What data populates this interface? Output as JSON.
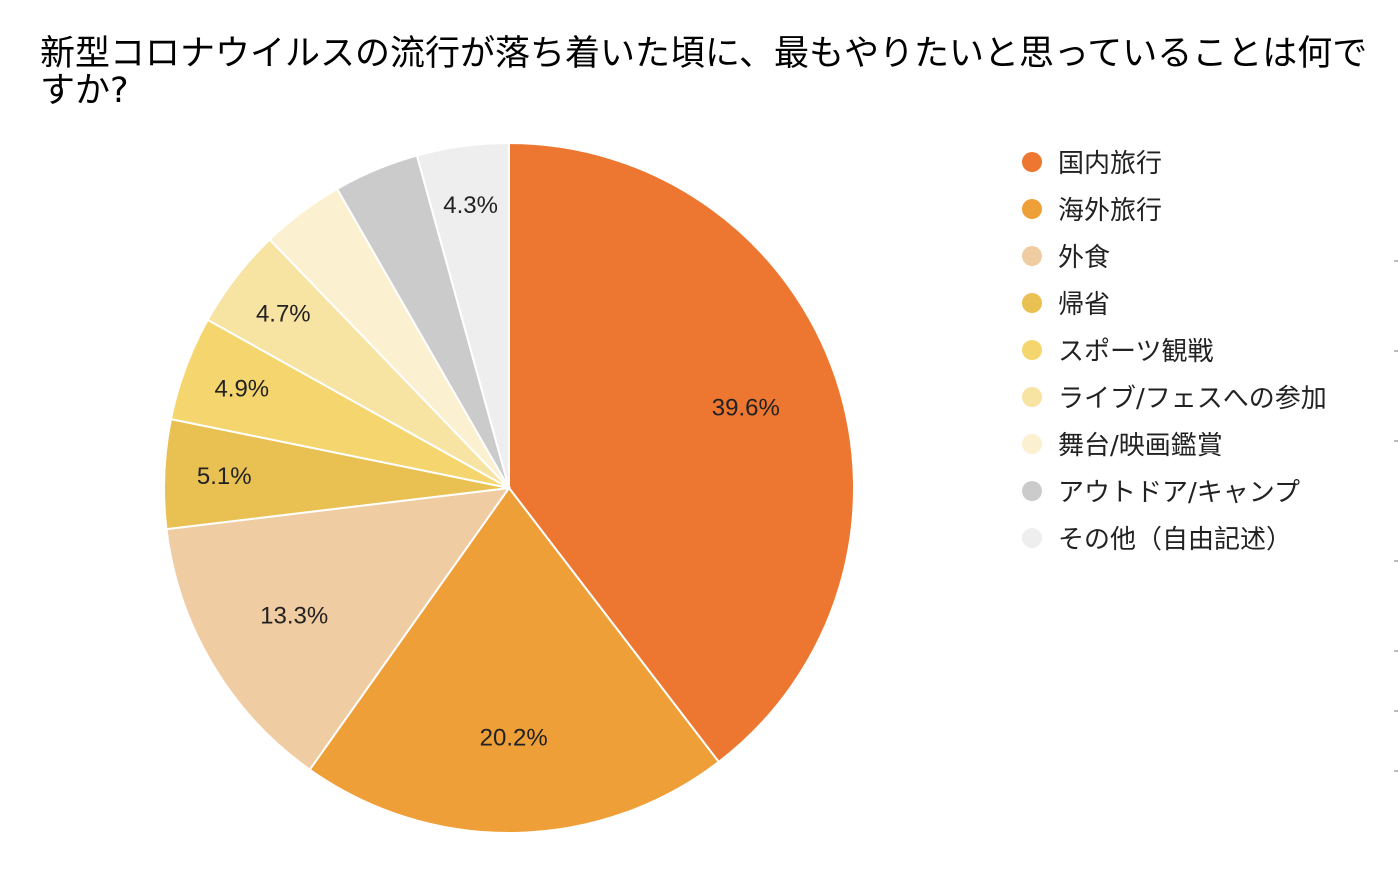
{
  "chart_data": {
    "type": "pie",
    "title": "新型コロナウイルスの流行が落ち着いた頃に、最もやりたいと思っていることは何ですか?",
    "legend_position": "right",
    "slices": [
      {
        "label": "国内旅行",
        "value": 39.6,
        "display": "39.6%",
        "color": "#ED7731"
      },
      {
        "label": "海外旅行",
        "value": 20.2,
        "display": "20.2%",
        "color": "#EF9F38"
      },
      {
        "label": "外食",
        "value": 13.3,
        "display": "13.3%",
        "color": "#F0CCA2"
      },
      {
        "label": "帰省",
        "value": 5.1,
        "display": "5.1%",
        "color": "#E8C152"
      },
      {
        "label": "スポーツ観戦",
        "value": 4.9,
        "display": "4.9%",
        "color": "#F5D66E"
      },
      {
        "label": "ライブ/フェスへの参加",
        "value": 4.7,
        "display": "4.7%",
        "color": "#F7E3A2"
      },
      {
        "label": "舞台/映画鑑賞",
        "value": 3.9,
        "display": "",
        "color": "#FBF0CF"
      },
      {
        "label": "アウトドア/キャンプ",
        "value": 4.0,
        "display": "",
        "color": "#CBCBCB"
      },
      {
        "label": "その他（自由記述）",
        "value": 4.3,
        "display": "4.3%",
        "color": "#EEEEEE"
      }
    ]
  }
}
